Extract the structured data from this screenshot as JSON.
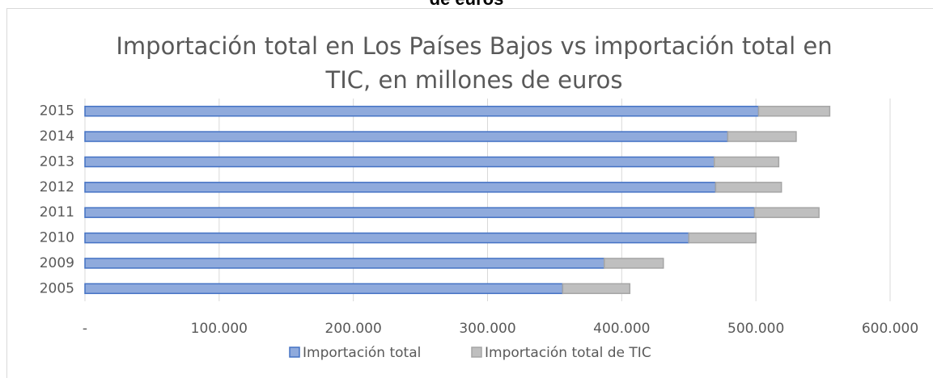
{
  "caption": "de euros",
  "chart_data": {
    "type": "stacked_barh",
    "title": "Importación total en Los Países Bajos vs importación total en TIC, en millones de euros",
    "categories": [
      "2005",
      "2009",
      "2010",
      "2011",
      "2012",
      "2013",
      "2014",
      "2015"
    ],
    "series": [
      {
        "name": "Importación total",
        "color": "#8faadc",
        "edge": "#4472c4",
        "values": [
          356000,
          387000,
          450000,
          499000,
          470000,
          469000,
          479000,
          502000
        ]
      },
      {
        "name": "Importación total de TIC",
        "color": "#bfbfbf",
        "edge": "#a5a5a5",
        "values": [
          50000,
          44000,
          50000,
          48000,
          49000,
          48000,
          51000,
          53000
        ]
      }
    ],
    "xlim": [
      0,
      600000
    ],
    "xticks": [
      {
        "value": 0,
        "label": "-"
      },
      {
        "value": 100000,
        "label": "100.000"
      },
      {
        "value": 200000,
        "label": "200.000"
      },
      {
        "value": 300000,
        "label": "300.000"
      },
      {
        "value": 400000,
        "label": "400.000"
      },
      {
        "value": 500000,
        "label": "500.000"
      },
      {
        "value": 600000,
        "label": "600.000"
      }
    ],
    "grid": true,
    "legend": "bottom"
  }
}
